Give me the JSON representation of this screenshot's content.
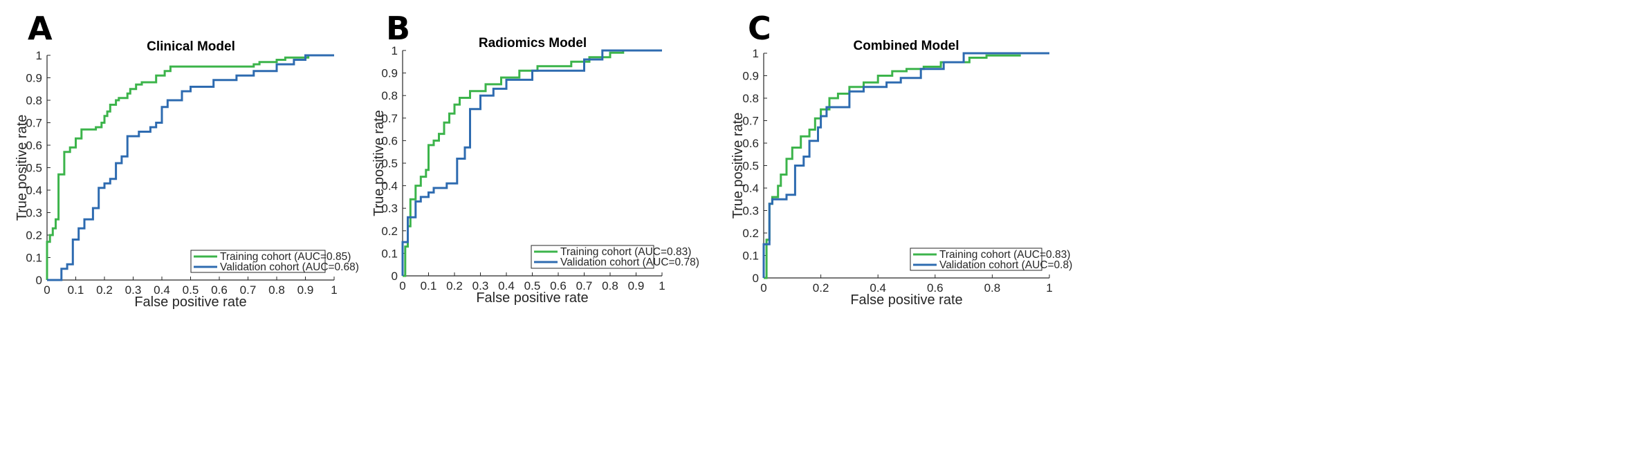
{
  "colors": {
    "training": "#3cb44b",
    "validation": "#2e6bb0",
    "axis": "#262626"
  },
  "panels": [
    {
      "letter": "A"
    },
    {
      "letter": "B"
    },
    {
      "letter": "C"
    }
  ],
  "chart_data": [
    {
      "type": "line",
      "title": "Clinical Model",
      "xlabel": "False positive rate",
      "ylabel": "True positive rate",
      "xlim": [
        0,
        1
      ],
      "ylim": [
        0,
        1
      ],
      "xticks": [
        0,
        0.1,
        0.2,
        0.3,
        0.4,
        0.5,
        0.6,
        0.7,
        0.8,
        0.9,
        1
      ],
      "xtick_labels": [
        "0",
        "0.1",
        "0.2",
        "0.3",
        "0.4",
        "0.5",
        "0.6",
        "0.7",
        "0.8",
        "0.9",
        "1"
      ],
      "yticks": [
        0,
        0.1,
        0.2,
        0.3,
        0.4,
        0.5,
        0.6,
        0.7,
        0.8,
        0.9,
        1
      ],
      "ytick_labels": [
        "0",
        "0.1",
        "0.2",
        "0.3",
        "0.4",
        "0.5",
        "0.6",
        "0.7",
        "0.8",
        "0.9",
        "1"
      ],
      "legend_position": "bottom-right",
      "series": [
        {
          "name": "Training cohort (AUC=0.85)",
          "color_key": "training",
          "x": [
            0,
            0,
            0.01,
            0.01,
            0.02,
            0.02,
            0.03,
            0.03,
            0.04,
            0.04,
            0.06,
            0.06,
            0.08,
            0.08,
            0.1,
            0.1,
            0.12,
            0.12,
            0.17,
            0.17,
            0.19,
            0.19,
            0.2,
            0.2,
            0.21,
            0.21,
            0.22,
            0.22,
            0.24,
            0.24,
            0.25,
            0.25,
            0.28,
            0.28,
            0.29,
            0.29,
            0.31,
            0.31,
            0.33,
            0.33,
            0.38,
            0.38,
            0.41,
            0.41,
            0.43,
            0.43,
            0.72,
            0.72,
            0.74,
            0.74,
            0.8,
            0.8,
            0.83,
            0.83,
            0.91,
            0.91,
            1
          ],
          "y": [
            0,
            0.17,
            0.17,
            0.2,
            0.2,
            0.23,
            0.23,
            0.27,
            0.27,
            0.47,
            0.47,
            0.57,
            0.57,
            0.59,
            0.59,
            0.63,
            0.63,
            0.67,
            0.67,
            0.68,
            0.68,
            0.7,
            0.7,
            0.73,
            0.73,
            0.75,
            0.75,
            0.78,
            0.78,
            0.8,
            0.8,
            0.81,
            0.81,
            0.83,
            0.83,
            0.85,
            0.85,
            0.87,
            0.87,
            0.88,
            0.88,
            0.91,
            0.91,
            0.93,
            0.93,
            0.95,
            0.95,
            0.96,
            0.96,
            0.97,
            0.97,
            0.98,
            0.98,
            0.99,
            0.99,
            1,
            1
          ]
        },
        {
          "name": "Validation cohort (AUC=0.68)",
          "color_key": "validation",
          "x": [
            0,
            0.05,
            0.05,
            0.07,
            0.07,
            0.09,
            0.09,
            0.11,
            0.11,
            0.13,
            0.13,
            0.16,
            0.16,
            0.18,
            0.18,
            0.2,
            0.2,
            0.22,
            0.22,
            0.24,
            0.24,
            0.26,
            0.26,
            0.28,
            0.28,
            0.32,
            0.32,
            0.36,
            0.36,
            0.38,
            0.38,
            0.4,
            0.4,
            0.42,
            0.42,
            0.47,
            0.47,
            0.5,
            0.5,
            0.58,
            0.58,
            0.66,
            0.66,
            0.72,
            0.72,
            0.8,
            0.8,
            0.86,
            0.86,
            0.9,
            0.9,
            0.93,
            0.93,
            1
          ],
          "y": [
            0,
            0,
            0.05,
            0.05,
            0.07,
            0.07,
            0.18,
            0.18,
            0.23,
            0.23,
            0.27,
            0.27,
            0.32,
            0.32,
            0.41,
            0.41,
            0.43,
            0.43,
            0.45,
            0.45,
            0.52,
            0.52,
            0.55,
            0.55,
            0.64,
            0.64,
            0.66,
            0.66,
            0.68,
            0.68,
            0.7,
            0.7,
            0.77,
            0.77,
            0.8,
            0.8,
            0.84,
            0.84,
            0.86,
            0.86,
            0.89,
            0.89,
            0.91,
            0.91,
            0.93,
            0.93,
            0.96,
            0.96,
            0.98,
            0.98,
            1,
            1,
            1,
            1
          ]
        }
      ]
    },
    {
      "type": "line",
      "title": "Radiomics Model",
      "xlabel": "False positive rate",
      "ylabel": "True positive rate",
      "xlim": [
        0,
        1
      ],
      "ylim": [
        0,
        1
      ],
      "xticks": [
        0,
        0.1,
        0.2,
        0.3,
        0.4,
        0.5,
        0.6,
        0.7,
        0.8,
        0.9,
        1
      ],
      "xtick_labels": [
        "0",
        "0.1",
        "0.2",
        "0.3",
        "0.4",
        "0.5",
        "0.6",
        "0.7",
        "0.8",
        "0.9",
        "1"
      ],
      "yticks": [
        0,
        0.1,
        0.2,
        0.3,
        0.4,
        0.5,
        0.6,
        0.7,
        0.8,
        0.9,
        1
      ],
      "ytick_labels": [
        "0",
        "0.1",
        "0.2",
        "0.3",
        "0.4",
        "0.5",
        "0.6",
        "0.7",
        "0.8",
        "0.9",
        "1"
      ],
      "legend_position": "bottom-right",
      "series": [
        {
          "name": "Training cohort (AUC=0.83)",
          "color_key": "training",
          "x": [
            0,
            0.01,
            0.01,
            0.02,
            0.02,
            0.03,
            0.03,
            0.05,
            0.05,
            0.07,
            0.07,
            0.09,
            0.09,
            0.1,
            0.1,
            0.12,
            0.12,
            0.14,
            0.14,
            0.16,
            0.16,
            0.18,
            0.18,
            0.2,
            0.2,
            0.22,
            0.22,
            0.26,
            0.26,
            0.32,
            0.32,
            0.38,
            0.38,
            0.45,
            0.45,
            0.52,
            0.52,
            0.65,
            0.65,
            0.72,
            0.72,
            0.8,
            0.8,
            0.85,
            0.85,
            1
          ],
          "y": [
            0,
            0,
            0.13,
            0.13,
            0.22,
            0.22,
            0.34,
            0.34,
            0.4,
            0.4,
            0.44,
            0.44,
            0.47,
            0.47,
            0.58,
            0.58,
            0.6,
            0.6,
            0.63,
            0.63,
            0.68,
            0.68,
            0.72,
            0.72,
            0.76,
            0.76,
            0.79,
            0.79,
            0.82,
            0.82,
            0.85,
            0.85,
            0.88,
            0.88,
            0.91,
            0.91,
            0.93,
            0.93,
            0.95,
            0.95,
            0.97,
            0.97,
            0.99,
            0.99,
            1,
            1
          ]
        },
        {
          "name": "Validation cohort (AUC=0.78)",
          "color_key": "validation",
          "x": [
            0,
            0,
            0.02,
            0.02,
            0.05,
            0.05,
            0.07,
            0.07,
            0.1,
            0.1,
            0.12,
            0.12,
            0.17,
            0.17,
            0.21,
            0.21,
            0.24,
            0.24,
            0.26,
            0.26,
            0.3,
            0.3,
            0.35,
            0.35,
            0.4,
            0.4,
            0.5,
            0.5,
            0.7,
            0.7,
            0.77,
            0.77,
            1
          ],
          "y": [
            0,
            0.15,
            0.15,
            0.26,
            0.26,
            0.33,
            0.33,
            0.35,
            0.35,
            0.37,
            0.37,
            0.39,
            0.39,
            0.41,
            0.41,
            0.52,
            0.52,
            0.57,
            0.57,
            0.74,
            0.74,
            0.8,
            0.8,
            0.83,
            0.83,
            0.87,
            0.87,
            0.91,
            0.91,
            0.96,
            0.96,
            1,
            1
          ]
        }
      ]
    },
    {
      "type": "line",
      "title": "Combined Model",
      "xlabel": "False positive rate",
      "ylabel": "True positive rate",
      "xlim": [
        0,
        1
      ],
      "ylim": [
        0,
        1
      ],
      "xticks": [
        0,
        0.2,
        0.4,
        0.6,
        0.8,
        1
      ],
      "xtick_labels": [
        "0",
        "0.2",
        "0.4",
        "0.6",
        "0.8",
        "1"
      ],
      "yticks": [
        0,
        0.1,
        0.2,
        0.3,
        0.4,
        0.5,
        0.6,
        0.7,
        0.8,
        0.9,
        1
      ],
      "ytick_labels": [
        "0",
        "0.1",
        "0.2",
        "0.3",
        "0.4",
        "0.5",
        "0.6",
        "0.7",
        "0.8",
        "0.9",
        "1"
      ],
      "legend_position": "bottom-right",
      "series": [
        {
          "name": "Training cohort (AUC=0.83)",
          "color_key": "training",
          "x": [
            0,
            0.01,
            0.01,
            0.02,
            0.02,
            0.03,
            0.03,
            0.05,
            0.05,
            0.06,
            0.06,
            0.08,
            0.08,
            0.1,
            0.1,
            0.13,
            0.13,
            0.16,
            0.16,
            0.18,
            0.18,
            0.2,
            0.2,
            0.23,
            0.23,
            0.26,
            0.26,
            0.3,
            0.3,
            0.35,
            0.35,
            0.4,
            0.4,
            0.45,
            0.45,
            0.5,
            0.5,
            0.56,
            0.56,
            0.62,
            0.62,
            0.72,
            0.72,
            0.78,
            0.78,
            0.9
          ],
          "y": [
            0,
            0,
            0.17,
            0.17,
            0.33,
            0.33,
            0.36,
            0.36,
            0.41,
            0.41,
            0.46,
            0.46,
            0.53,
            0.53,
            0.58,
            0.58,
            0.63,
            0.63,
            0.66,
            0.66,
            0.71,
            0.71,
            0.75,
            0.75,
            0.8,
            0.8,
            0.82,
            0.82,
            0.85,
            0.85,
            0.87,
            0.87,
            0.9,
            0.9,
            0.92,
            0.92,
            0.93,
            0.93,
            0.94,
            0.94,
            0.96,
            0.96,
            0.98,
            0.98,
            0.99,
            0.99
          ]
        },
        {
          "name": "Validation cohort (AUC=0.8)",
          "color_key": "validation",
          "x": [
            0,
            0,
            0.02,
            0.02,
            0.03,
            0.03,
            0.08,
            0.08,
            0.11,
            0.11,
            0.14,
            0.14,
            0.16,
            0.16,
            0.19,
            0.19,
            0.2,
            0.2,
            0.22,
            0.22,
            0.3,
            0.3,
            0.35,
            0.35,
            0.43,
            0.43,
            0.48,
            0.48,
            0.55,
            0.55,
            0.63,
            0.63,
            0.7,
            0.7,
            1
          ],
          "y": [
            0,
            0.15,
            0.15,
            0.33,
            0.33,
            0.35,
            0.35,
            0.37,
            0.37,
            0.5,
            0.5,
            0.54,
            0.54,
            0.61,
            0.61,
            0.67,
            0.67,
            0.72,
            0.72,
            0.76,
            0.76,
            0.83,
            0.83,
            0.85,
            0.85,
            0.87,
            0.87,
            0.89,
            0.89,
            0.93,
            0.93,
            0.96,
            0.96,
            1,
            1
          ]
        }
      ]
    }
  ]
}
